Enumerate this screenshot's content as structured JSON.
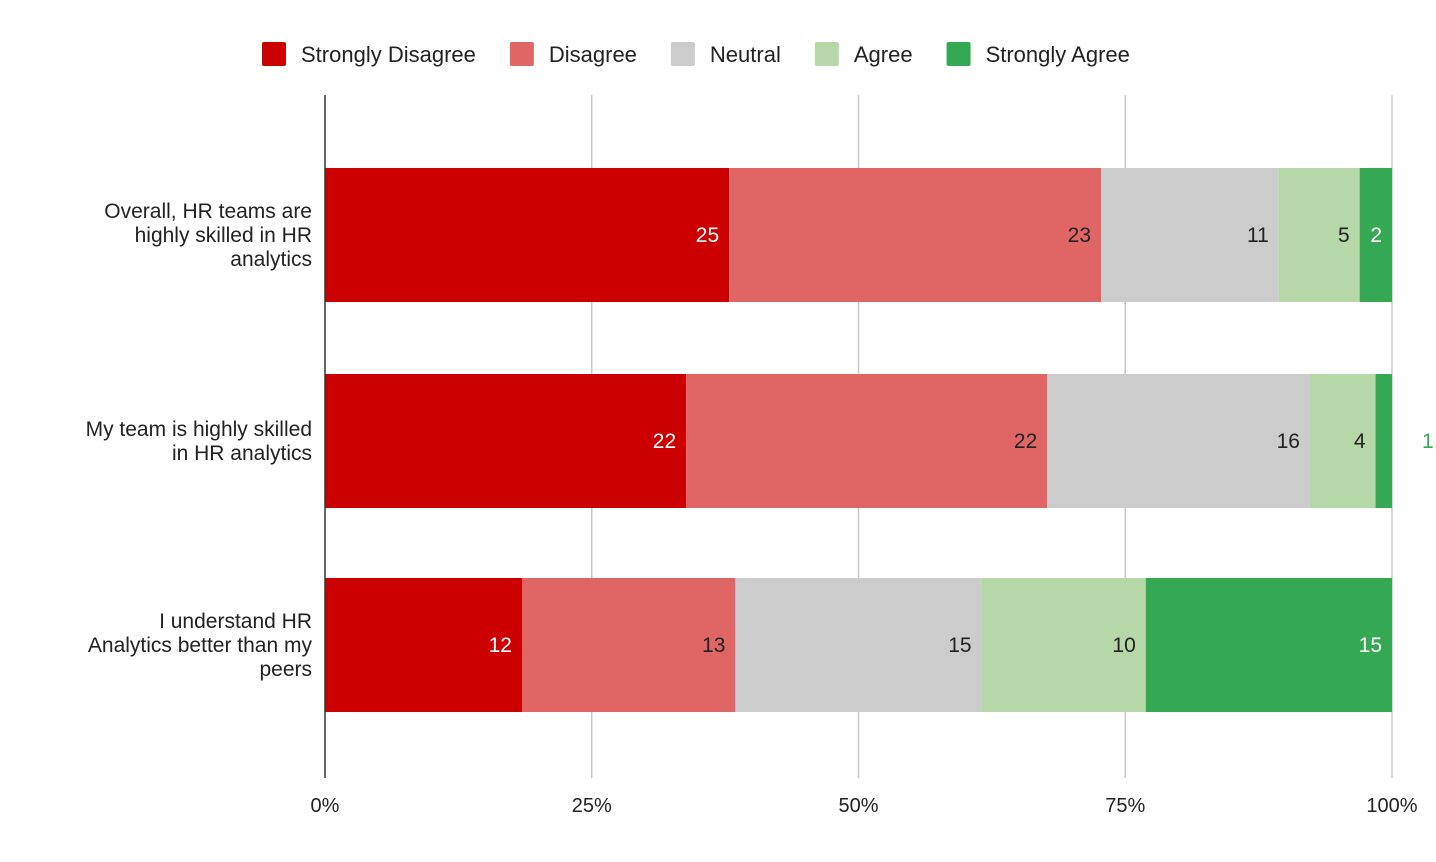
{
  "chart_data": {
    "type": "bar",
    "orientation": "horizontal",
    "stacking": "percent",
    "title": "",
    "xlabel": "",
    "ylabel": "",
    "xlim": [
      0,
      100
    ],
    "x_tick_labels": [
      "0%",
      "25%",
      "50%",
      "75%",
      "100%"
    ],
    "grid": true,
    "legend_position": "top",
    "categories": [
      [
        "Overall, HR teams are",
        "highly skilled in HR",
        "analytics"
      ],
      [
        "My team is highly skilled",
        "in HR analytics"
      ],
      [
        "I understand HR",
        "Analytics better than my",
        "peers"
      ]
    ],
    "series": [
      {
        "name": "Strongly Disagree",
        "color": "#cc0000",
        "label_color": "#ffffff",
        "values": [
          25,
          22,
          12
        ]
      },
      {
        "name": "Disagree",
        "color": "#e06666",
        "label_color": "#222222",
        "values": [
          23,
          22,
          13
        ]
      },
      {
        "name": "Neutral",
        "color": "#cccccc",
        "label_color": "#222222",
        "values": [
          11,
          16,
          15
        ]
      },
      {
        "name": "Agree",
        "color": "#b6d7a8",
        "label_color": "#222222",
        "values": [
          5,
          4,
          10
        ]
      },
      {
        "name": "Strongly Agree",
        "color": "#34a853",
        "label_color": "#ffffff",
        "values": [
          2,
          1,
          15
        ]
      }
    ]
  }
}
